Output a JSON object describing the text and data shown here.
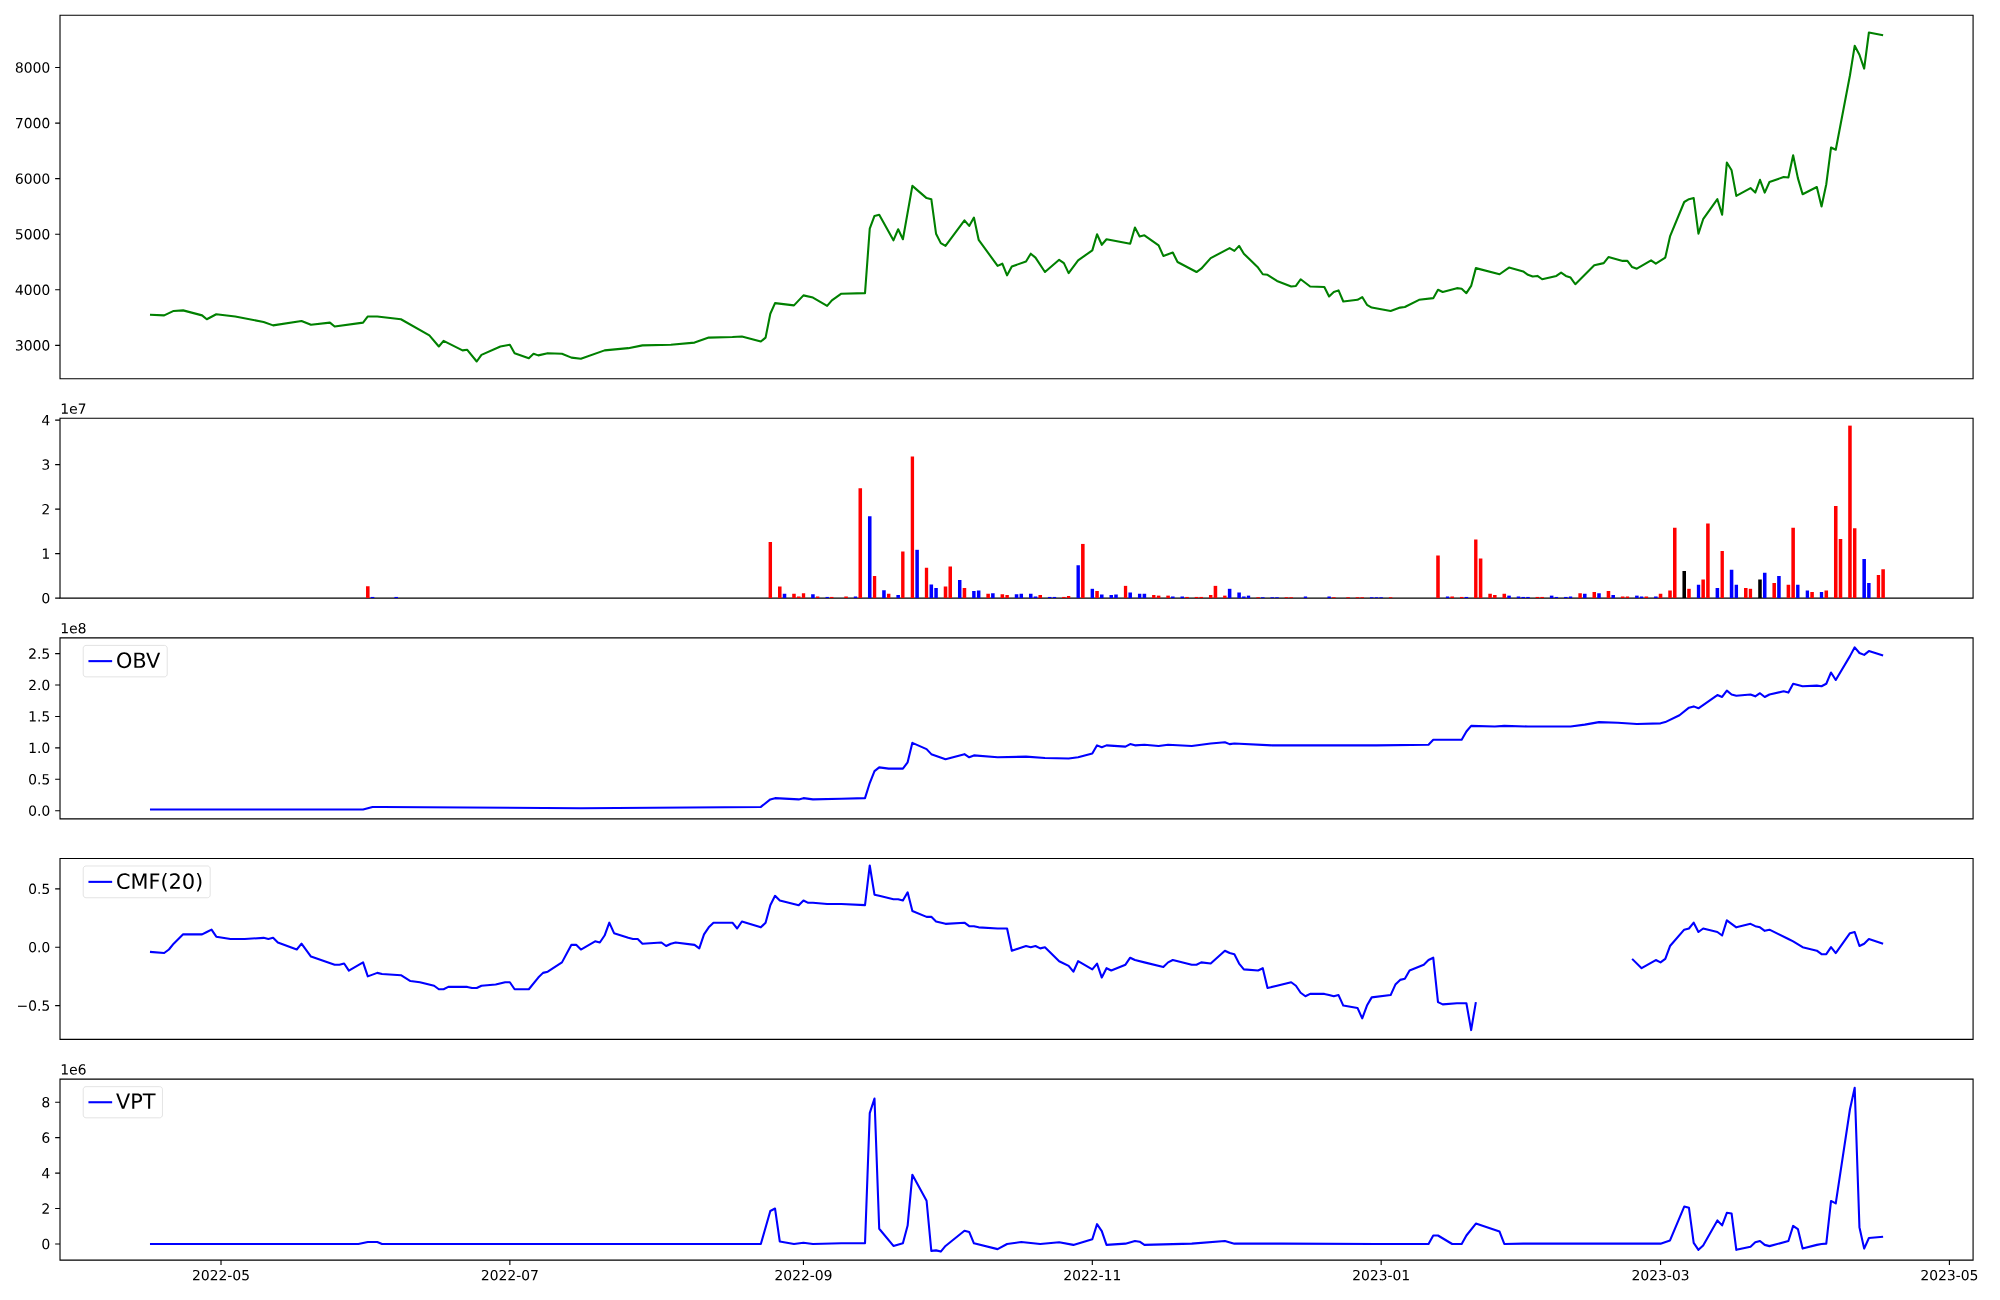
{
  "chart_data": [
    {
      "type": "line",
      "color": "#008000",
      "xlim": [
        "2022-03-28",
        "2023-05-06"
      ],
      "ylim": [
        2400,
        8940
      ],
      "yticks": [
        3000,
        4000,
        5000,
        6000,
        7000,
        8000
      ],
      "tick_labels": "y",
      "x": [
        "2022-04-16",
        "2022-04-19",
        "2022-04-21",
        "2022-04-23",
        "2022-04-27",
        "2022-04-28",
        "2022-04-30",
        "2022-05-04",
        "2022-05-10",
        "2022-05-12",
        "2022-05-18",
        "2022-05-20",
        "2022-05-24",
        "2022-05-25",
        "2022-05-31",
        "2022-06-01",
        "2022-06-03",
        "2022-06-08",
        "2022-06-14",
        "2022-06-16",
        "2022-06-17",
        "2022-06-21",
        "2022-06-22",
        "2022-06-24",
        "2022-06-25",
        "2022-06-29",
        "2022-07-01",
        "2022-07-02",
        "2022-07-05",
        "2022-07-06",
        "2022-07-07",
        "2022-07-09",
        "2022-07-12",
        "2022-07-14",
        "2022-07-16",
        "2022-07-21",
        "2022-07-26",
        "2022-07-29",
        "2022-08-04",
        "2022-08-09",
        "2022-08-12",
        "2022-08-17",
        "2022-08-19",
        "2022-08-23",
        "2022-08-24",
        "2022-08-25",
        "2022-08-26",
        "2022-08-30",
        "2022-09-01",
        "2022-09-03",
        "2022-09-06",
        "2022-09-07",
        "2022-09-09",
        "2022-09-14",
        "2022-09-15",
        "2022-09-16",
        "2022-09-17",
        "2022-09-20",
        "2022-09-21",
        "2022-09-22",
        "2022-09-24",
        "2022-09-27",
        "2022-09-28",
        "2022-09-29",
        "2022-09-30",
        "2022-10-01",
        "2022-10-05",
        "2022-10-06",
        "2022-10-07",
        "2022-10-08",
        "2022-10-12",
        "2022-10-13",
        "2022-10-14",
        "2022-10-15",
        "2022-10-18",
        "2022-10-19",
        "2022-10-20",
        "2022-10-22",
        "2022-10-25",
        "2022-10-26",
        "2022-10-27",
        "2022-10-29",
        "2022-11-01",
        "2022-11-02",
        "2022-11-03",
        "2022-11-04",
        "2022-11-09",
        "2022-11-10",
        "2022-11-11",
        "2022-11-12",
        "2022-11-15",
        "2022-11-16",
        "2022-11-18",
        "2022-11-19",
        "2022-11-23",
        "2022-11-24",
        "2022-11-26",
        "2022-11-30",
        "2022-12-01",
        "2022-12-02",
        "2022-12-03",
        "2022-12-06",
        "2022-12-07",
        "2022-12-08",
        "2022-12-10",
        "2022-12-13",
        "2022-12-14",
        "2022-12-15",
        "2022-12-17",
        "2022-12-20",
        "2022-12-21",
        "2022-12-22",
        "2022-12-23",
        "2022-12-24",
        "2022-12-27",
        "2022-12-28",
        "2022-12-29",
        "2022-12-30",
        "2023-01-03",
        "2023-01-05",
        "2023-01-06",
        "2023-01-09",
        "2023-01-12",
        "2023-01-13",
        "2023-01-14",
        "2023-01-17",
        "2023-01-18",
        "2023-01-19",
        "2023-01-20",
        "2023-01-21",
        "2023-01-26",
        "2023-01-28",
        "2023-01-31",
        "2023-02-01",
        "2023-02-02",
        "2023-02-03",
        "2023-02-04",
        "2023-02-07",
        "2023-02-08",
        "2023-02-09",
        "2023-02-10",
        "2023-02-11",
        "2023-02-15",
        "2023-02-17",
        "2023-02-18",
        "2023-02-21",
        "2023-02-22",
        "2023-02-23",
        "2023-02-24",
        "2023-02-27",
        "2023-02-28",
        "2023-03-02",
        "2023-03-03",
        "2023-03-06",
        "2023-03-07",
        "2023-03-08",
        "2023-03-09",
        "2023-03-10",
        "2023-03-13",
        "2023-03-14",
        "2023-03-15",
        "2023-03-16",
        "2023-03-17",
        "2023-03-20",
        "2023-03-21",
        "2023-03-22",
        "2023-03-23",
        "2023-03-24",
        "2023-03-27",
        "2023-03-28",
        "2023-03-29",
        "2023-03-30",
        "2023-03-31",
        "2023-04-03",
        "2023-04-04",
        "2023-04-05",
        "2023-04-06",
        "2023-04-07",
        "2023-04-10",
        "2023-04-11",
        "2023-04-12",
        "2023-04-13",
        "2023-04-14",
        "2023-04-17"
      ],
      "values": [
        3550,
        3540,
        3620,
        3630,
        3540,
        3470,
        3560,
        3520,
        3420,
        3360,
        3440,
        3370,
        3410,
        3340,
        3410,
        3520,
        3520,
        3470,
        3180,
        2980,
        3080,
        2910,
        2920,
        2710,
        2830,
        2980,
        3010,
        2860,
        2770,
        2850,
        2820,
        2860,
        2850,
        2780,
        2760,
        2910,
        2950,
        3000,
        3010,
        3050,
        3140,
        3150,
        3160,
        3070,
        3140,
        3570,
        3760,
        3720,
        3900,
        3860,
        3710,
        3810,
        3930,
        3940,
        5100,
        5330,
        5350,
        4890,
        5090,
        4910,
        5870,
        5650,
        5630,
        5010,
        4840,
        4790,
        5250,
        5150,
        5300,
        4900,
        4430,
        4470,
        4260,
        4420,
        4510,
        4650,
        4580,
        4320,
        4540,
        4480,
        4300,
        4530,
        4710,
        5000,
        4810,
        4910,
        4830,
        5120,
        4960,
        4980,
        4800,
        4610,
        4670,
        4500,
        4320,
        4380,
        4570,
        4750,
        4700,
        4790,
        4650,
        4400,
        4280,
        4270,
        4160,
        4060,
        4070,
        4190,
        4060,
        4050,
        3880,
        3960,
        3990,
        3790,
        3820,
        3870,
        3730,
        3680,
        3620,
        3680,
        3690,
        3820,
        3850,
        4000,
        3960,
        4030,
        4020,
        3940,
        4070,
        4390,
        4280,
        4400,
        4330,
        4270,
        4240,
        4250,
        4190,
        4250,
        4310,
        4250,
        4220,
        4100,
        4440,
        4480,
        4590,
        4520,
        4520,
        4410,
        4380,
        4530,
        4470,
        4580,
        4960,
        5580,
        5630,
        5650,
        5010,
        5270,
        5630,
        5350,
        6290,
        6150,
        5690,
        5830,
        5750,
        5980,
        5750,
        5940,
        6030,
        6020,
        6420,
        6010,
        5720,
        5850,
        5500,
        5900,
        6560,
        6520,
        7860,
        8390,
        8230,
        7980,
        8630,
        8580
      ]
    },
    {
      "type": "bar",
      "xlim": [
        "2022-03-28",
        "2023-05-06"
      ],
      "ylim": [
        0,
        4.04
      ],
      "tick_labels": "y",
      "annotations": [
        "1e7"
      ],
      "yticks": [
        0,
        1,
        2,
        3,
        4
      ],
      "x": [
        "2022-06-01",
        "2022-06-02",
        "2022-06-07",
        "2022-08-25",
        "2022-08-27",
        "2022-08-28",
        "2022-08-30",
        "2022-08-31",
        "2022-09-01",
        "2022-09-03",
        "2022-09-04",
        "2022-09-06",
        "2022-09-07",
        "2022-09-10",
        "2022-09-12",
        "2022-09-13",
        "2022-09-15",
        "2022-09-16",
        "2022-09-18",
        "2022-09-19",
        "2022-09-21",
        "2022-09-22",
        "2022-09-24",
        "2022-09-25",
        "2022-09-27",
        "2022-09-28",
        "2022-09-29",
        "2022-10-01",
        "2022-10-02",
        "2022-10-04",
        "2022-10-05",
        "2022-10-07",
        "2022-10-08",
        "2022-10-10",
        "2022-10-11",
        "2022-10-13",
        "2022-10-14",
        "2022-10-16",
        "2022-10-17",
        "2022-10-19",
        "2022-10-20",
        "2022-10-21",
        "2022-10-23",
        "2022-10-24",
        "2022-10-26",
        "2022-10-27",
        "2022-10-29",
        "2022-10-30",
        "2022-11-01",
        "2022-11-02",
        "2022-11-03",
        "2022-11-05",
        "2022-11-06",
        "2022-11-08",
        "2022-11-09",
        "2022-11-11",
        "2022-11-12",
        "2022-11-14",
        "2022-11-15",
        "2022-11-17",
        "2022-11-18",
        "2022-11-20",
        "2022-11-21",
        "2022-11-23",
        "2022-11-24",
        "2022-11-26",
        "2022-11-27",
        "2022-11-29",
        "2022-11-30",
        "2022-12-02",
        "2022-12-03",
        "2022-12-04",
        "2022-12-06",
        "2022-12-07",
        "2022-12-09",
        "2022-12-10",
        "2022-12-12",
        "2022-12-13",
        "2022-12-16",
        "2022-12-21",
        "2022-12-22",
        "2022-12-25",
        "2022-12-27",
        "2022-12-28",
        "2022-12-30",
        "2022-12-31",
        "2023-01-01",
        "2023-01-03",
        "2023-01-13",
        "2023-01-15",
        "2023-01-16",
        "2023-01-18",
        "2023-01-19",
        "2023-01-21",
        "2023-01-22",
        "2023-01-24",
        "2023-01-25",
        "2023-01-27",
        "2023-01-28",
        "2023-01-30",
        "2023-01-31",
        "2023-02-01",
        "2023-02-03",
        "2023-02-04",
        "2023-02-06",
        "2023-02-07",
        "2023-02-09",
        "2023-02-10",
        "2023-02-12",
        "2023-02-13",
        "2023-02-15",
        "2023-02-16",
        "2023-02-18",
        "2023-02-19",
        "2023-02-21",
        "2023-02-22",
        "2023-02-24",
        "2023-02-25",
        "2023-02-26",
        "2023-02-28",
        "2023-03-01",
        "2023-03-03",
        "2023-03-04",
        "2023-03-06",
        "2023-03-07",
        "2023-03-09",
        "2023-03-10",
        "2023-03-11",
        "2023-03-13",
        "2023-03-14",
        "2023-03-16",
        "2023-03-17",
        "2023-03-19",
        "2023-03-20",
        "2023-03-22",
        "2023-03-23",
        "2023-03-25",
        "2023-03-26",
        "2023-03-28",
        "2023-03-29",
        "2023-03-30",
        "2023-04-01",
        "2023-04-02",
        "2023-04-04",
        "2023-04-05",
        "2023-04-07",
        "2023-04-08",
        "2023-04-10",
        "2023-04-11",
        "2023-04-13",
        "2023-04-14",
        "2023-04-16",
        "2023-04-17"
      ],
      "values": [
        0.27,
        0.03,
        0.03,
        1.26,
        0.26,
        0.1,
        0.1,
        0.04,
        0.11,
        0.09,
        0.04,
        0.03,
        0.03,
        0.04,
        0.04,
        2.47,
        1.84,
        0.5,
        0.18,
        0.1,
        0.07,
        1.05,
        3.18,
        1.09,
        0.69,
        0.31,
        0.23,
        0.26,
        0.71,
        0.41,
        0.23,
        0.16,
        0.17,
        0.1,
        0.11,
        0.09,
        0.07,
        0.09,
        0.1,
        0.1,
        0.04,
        0.07,
        0.03,
        0.03,
        0.03,
        0.05,
        0.74,
        1.22,
        0.21,
        0.16,
        0.08,
        0.07,
        0.08,
        0.28,
        0.13,
        0.1,
        0.1,
        0.07,
        0.06,
        0.06,
        0.04,
        0.04,
        0.03,
        0.03,
        0.03,
        0.07,
        0.28,
        0.06,
        0.21,
        0.13,
        0.04,
        0.06,
        0.02,
        0.02,
        0.02,
        0.02,
        0.02,
        0.02,
        0.04,
        0.04,
        0.02,
        0.02,
        0.02,
        0.02,
        0.02,
        0.02,
        0.02,
        0.02,
        0.96,
        0.04,
        0.04,
        0.03,
        0.03,
        1.32,
        0.89,
        0.1,
        0.07,
        0.1,
        0.06,
        0.04,
        0.03,
        0.03,
        0.03,
        0.03,
        0.06,
        0.03,
        0.03,
        0.04,
        0.11,
        0.1,
        0.14,
        0.11,
        0.16,
        0.07,
        0.04,
        0.04,
        0.06,
        0.04,
        0.04,
        0.04,
        0.1,
        0.17,
        1.58,
        0.61,
        0.21,
        0.3,
        0.42,
        1.68,
        0.23,
        1.06,
        0.64,
        0.3,
        0.23,
        0.21,
        0.42,
        0.57,
        0.34,
        0.5,
        0.3,
        1.58,
        0.3,
        0.17,
        0.14,
        0.14,
        0.17,
        2.07,
        1.33,
        3.88,
        1.57,
        0.88,
        0.34,
        0.52,
        0.65
      ],
      "colors": [
        "#ff0000",
        "#0000ff",
        "#0000ff",
        "#ff0000",
        "#ff0000",
        "#0000ff",
        "#ff0000",
        "#ff0000",
        "#ff0000",
        "#0000ff",
        "#ff0000",
        "#0000ff",
        "#ff0000",
        "#ff0000",
        "#0000ff",
        "#ff0000",
        "#0000ff",
        "#ff0000",
        "#0000ff",
        "#ff0000",
        "#0000ff",
        "#ff0000",
        "#ff0000",
        "#0000ff",
        "#ff0000",
        "#0000ff",
        "#0000ff",
        "#ff0000",
        "#ff0000",
        "#0000ff",
        "#ff0000",
        "#0000ff",
        "#0000ff",
        "#ff0000",
        "#0000ff",
        "#ff0000",
        "#ff0000",
        "#0000ff",
        "#0000ff",
        "#0000ff",
        "#0000ff",
        "#ff0000",
        "#0000ff",
        "#0000ff",
        "#ff0000",
        "#ff0000",
        "#0000ff",
        "#ff0000",
        "#0000ff",
        "#ff0000",
        "#0000ff",
        "#0000ff",
        "#0000ff",
        "#ff0000",
        "#0000ff",
        "#0000ff",
        "#0000ff",
        "#ff0000",
        "#ff0000",
        "#ff0000",
        "#0000ff",
        "#0000ff",
        "#ff0000",
        "#ff0000",
        "#ff0000",
        "#ff0000",
        "#ff0000",
        "#ff0000",
        "#0000ff",
        "#0000ff",
        "#0000ff",
        "#0000ff",
        "#ff0000",
        "#0000ff",
        "#0000ff",
        "#0000ff",
        "#ff0000",
        "#ff0000",
        "#0000ff",
        "#0000ff",
        "#ff0000",
        "#ff0000",
        "#ff0000",
        "#ff0000",
        "#0000ff",
        "#0000ff",
        "#0000ff",
        "#ff0000",
        "#ff0000",
        "#0000ff",
        "#ff0000",
        "#ff0000",
        "#0000ff",
        "#ff0000",
        "#ff0000",
        "#ff0000",
        "#ff0000",
        "#ff0000",
        "#0000ff",
        "#0000ff",
        "#0000ff",
        "#0000ff",
        "#ff0000",
        "#ff0000",
        "#0000ff",
        "#0000ff",
        "#0000ff",
        "#0000ff",
        "#ff0000",
        "#0000ff",
        "#ff0000",
        "#0000ff",
        "#ff0000",
        "#0000ff",
        "#ff0000",
        "#ff0000",
        "#0000ff",
        "#0000ff",
        "#ff0000",
        "#0000ff",
        "#ff0000",
        "#ff0000",
        "#ff0000",
        "#000000",
        "#ff0000",
        "#0000ff",
        "#ff0000",
        "#ff0000",
        "#0000ff",
        "#ff0000",
        "#0000ff",
        "#0000ff",
        "#ff0000",
        "#ff0000",
        "#000000",
        "#0000ff",
        "#ff0000",
        "#0000ff",
        "#ff0000",
        "#ff0000",
        "#0000ff",
        "#0000ff",
        "#ff0000",
        "#0000ff",
        "#ff0000",
        "#ff0000",
        "#ff0000",
        "#ff0000",
        "#ff0000",
        "#0000ff",
        "#0000ff",
        "#ff0000",
        "#ff0000"
      ]
    },
    {
      "type": "line",
      "xlim": [
        "2022-03-28",
        "2023-05-06"
      ],
      "ylim": [
        -0.13,
        2.75
      ],
      "tick_labels": "y",
      "legend": "top left",
      "annotations": [
        "1e8"
      ],
      "yticks": [
        {
          "value": 0,
          "label": "0.0"
        },
        0.5,
        {
          "value": 1,
          "label": "1.0"
        },
        1.5,
        {
          "value": 2,
          "label": "2.0"
        },
        2.5
      ],
      "x": [
        "2022-04-16",
        "2022-05-31",
        "2022-06-02",
        "2022-06-04",
        "2022-07-16",
        "2022-08-23",
        "2022-08-25",
        "2022-08-26",
        "2022-08-31",
        "2022-09-01",
        "2022-09-03",
        "2022-09-09",
        "2022-09-14",
        "2022-09-15",
        "2022-09-16",
        "2022-09-17",
        "2022-09-19",
        "2022-09-22",
        "2022-09-23",
        "2022-09-24",
        "2022-09-27",
        "2022-09-28",
        "2022-10-01",
        "2022-10-05",
        "2022-10-06",
        "2022-10-07",
        "2022-10-12",
        "2022-10-18",
        "2022-10-22",
        "2022-10-27",
        "2022-10-29",
        "2022-11-01",
        "2022-11-02",
        "2022-11-03",
        "2022-11-04",
        "2022-11-08",
        "2022-11-09",
        "2022-11-10",
        "2022-11-12",
        "2022-11-15",
        "2022-11-17",
        "2022-11-22",
        "2022-11-26",
        "2022-11-29",
        "2022-11-30",
        "2022-12-01",
        "2022-12-09",
        "2022-12-20",
        "2022-12-31",
        "2023-01-11",
        "2023-01-12",
        "2023-01-16",
        "2023-01-18",
        "2023-01-19",
        "2023-01-20",
        "2023-01-25",
        "2023-01-27",
        "2023-02-01",
        "2023-02-06",
        "2023-02-10",
        "2023-02-13",
        "2023-02-16",
        "2023-02-20",
        "2023-02-24",
        "2023-03-01",
        "2023-03-02",
        "2023-03-05",
        "2023-03-07",
        "2023-03-08",
        "2023-03-09",
        "2023-03-13",
        "2023-03-14",
        "2023-03-15",
        "2023-03-16",
        "2023-03-17",
        "2023-03-20",
        "2023-03-21",
        "2023-03-22",
        "2023-03-23",
        "2023-03-24",
        "2023-03-27",
        "2023-03-28",
        "2023-03-29",
        "2023-03-31",
        "2023-04-03",
        "2023-04-04",
        "2023-04-05",
        "2023-04-06",
        "2023-04-07",
        "2023-04-10",
        "2023-04-11",
        "2023-04-12",
        "2023-04-13",
        "2023-04-14",
        "2023-04-17"
      ],
      "series": [
        {
          "name": "OBV",
          "color": "#0000ff",
          "values": [
            0.02,
            0.02,
            0.06,
            0.06,
            0.04,
            0.06,
            0.18,
            0.2,
            0.18,
            0.2,
            0.18,
            0.19,
            0.2,
            0.44,
            0.63,
            0.69,
            0.67,
            0.67,
            0.77,
            1.08,
            0.98,
            0.9,
            0.82,
            0.9,
            0.85,
            0.88,
            0.85,
            0.86,
            0.84,
            0.83,
            0.85,
            0.91,
            1.04,
            1.01,
            1.04,
            1.02,
            1.06,
            1.04,
            1.05,
            1.03,
            1.05,
            1.03,
            1.07,
            1.09,
            1.06,
            1.07,
            1.04,
            1.04,
            1.04,
            1.05,
            1.13,
            1.13,
            1.13,
            1.26,
            1.35,
            1.34,
            1.35,
            1.34,
            1.34,
            1.34,
            1.37,
            1.41,
            1.4,
            1.38,
            1.39,
            1.41,
            1.52,
            1.64,
            1.66,
            1.63,
            1.84,
            1.81,
            1.91,
            1.85,
            1.83,
            1.85,
            1.82,
            1.87,
            1.81,
            1.85,
            1.9,
            1.88,
            2.02,
            1.98,
            1.99,
            1.98,
            2.02,
            2.2,
            2.08,
            2.46,
            2.6,
            2.51,
            2.48,
            2.54,
            2.47
          ]
        }
      ]
    },
    {
      "type": "line",
      "xlim": [
        "2022-03-28",
        "2023-05-06"
      ],
      "ylim": [
        -0.79,
        0.76
      ],
      "tick_labels": "y",
      "legend": "top left",
      "yticks": [
        {
          "value": -0.5,
          "label": "−0.5"
        },
        {
          "value": 0,
          "label": "0.0"
        },
        0.5
      ],
      "x": [
        "2022-04-16",
        "2022-04-19",
        "2022-04-20",
        "2022-04-21",
        "2022-04-22",
        "2022-04-23",
        "2022-04-27",
        "2022-04-28",
        "2022-04-29",
        "2022-04-30",
        "2022-05-03",
        "2022-05-04",
        "2022-05-06",
        "2022-05-10",
        "2022-05-11",
        "2022-05-12",
        "2022-05-13",
        "2022-05-17",
        "2022-05-18",
        "2022-05-20",
        "2022-05-25",
        "2022-05-26",
        "2022-05-27",
        "2022-05-28",
        "2022-05-31",
        "2022-06-01",
        "2022-06-03",
        "2022-06-04",
        "2022-06-08",
        "2022-06-10",
        "2022-06-12",
        "2022-06-15",
        "2022-06-16",
        "2022-06-17",
        "2022-06-18",
        "2022-06-21",
        "2022-06-22",
        "2022-06-23",
        "2022-06-24",
        "2022-06-25",
        "2022-06-28",
        "2022-06-30",
        "2022-07-01",
        "2022-07-02",
        "2022-07-05",
        "2022-07-07",
        "2022-07-08",
        "2022-07-09",
        "2022-07-12",
        "2022-07-14",
        "2022-07-15",
        "2022-07-16",
        "2022-07-19",
        "2022-07-20",
        "2022-07-21",
        "2022-07-22",
        "2022-07-23",
        "2022-07-26",
        "2022-07-27",
        "2022-07-28",
        "2022-07-29",
        "2022-08-02",
        "2022-08-03",
        "2022-08-04",
        "2022-08-05",
        "2022-08-09",
        "2022-08-10",
        "2022-08-11",
        "2022-08-12",
        "2022-08-13",
        "2022-08-17",
        "2022-08-18",
        "2022-08-19",
        "2022-08-23",
        "2022-08-24",
        "2022-08-25",
        "2022-08-26",
        "2022-08-27",
        "2022-08-31",
        "2022-09-01",
        "2022-09-02",
        "2022-09-03",
        "2022-09-06",
        "2022-09-09",
        "2022-09-14",
        "2022-09-15",
        "2022-09-16",
        "2022-09-17",
        "2022-09-20",
        "2022-09-21",
        "2022-09-22",
        "2022-09-23",
        "2022-09-24",
        "2022-09-27",
        "2022-09-28",
        "2022-09-29",
        "2022-10-01",
        "2022-10-05",
        "2022-10-06",
        "2022-10-07",
        "2022-10-08",
        "2022-10-12",
        "2022-10-14",
        "2022-10-15",
        "2022-10-18",
        "2022-10-19",
        "2022-10-20",
        "2022-10-21",
        "2022-10-22",
        "2022-10-25",
        "2022-10-27",
        "2022-10-28",
        "2022-10-29",
        "2022-11-01",
        "2022-11-02",
        "2022-11-03",
        "2022-11-04",
        "2022-11-05",
        "2022-11-08",
        "2022-11-09",
        "2022-11-10",
        "2022-11-12",
        "2022-11-16",
        "2022-11-17",
        "2022-11-18",
        "2022-11-22",
        "2022-11-23",
        "2022-11-24",
        "2022-11-26",
        "2022-11-29",
        "2022-11-30",
        "2022-12-01",
        "2022-12-02",
        "2022-12-03",
        "2022-12-06",
        "2022-12-07",
        "2022-12-08",
        "2022-12-10",
        "2022-12-13",
        "2022-12-14",
        "2022-12-15",
        "2022-12-16",
        "2022-12-17",
        "2022-12-20",
        "2022-12-21",
        "2022-12-22",
        "2022-12-23",
        "2022-12-24",
        "2022-12-27",
        "2022-12-28",
        "2022-12-29",
        "2022-12-30",
        "2023-01-03",
        "2023-01-04",
        "2023-01-05",
        "2023-01-06",
        "2023-01-07",
        "2023-01-10",
        "2023-01-11",
        "2023-01-12",
        "2023-01-13",
        "2023-01-14",
        "2023-01-17",
        "2023-01-18",
        "2023-01-19",
        "2023-01-20",
        "2023-01-21",
        "2023-02-05",
        "2023-02-23",
        "2023-02-25",
        "2023-02-28",
        "2023-03-01",
        "2023-03-02",
        "2023-03-03",
        "2023-03-06",
        "2023-03-07",
        "2023-03-08",
        "2023-03-09",
        "2023-03-10",
        "2023-03-13",
        "2023-03-14",
        "2023-03-15",
        "2023-03-16",
        "2023-03-17",
        "2023-03-20",
        "2023-03-21",
        "2023-03-22",
        "2023-03-23",
        "2023-03-24",
        "2023-03-28",
        "2023-03-29",
        "2023-03-31",
        "2023-04-03",
        "2023-04-04",
        "2023-04-05",
        "2023-04-06",
        "2023-04-07",
        "2023-04-10",
        "2023-04-11",
        "2023-04-12",
        "2023-04-13",
        "2023-04-14",
        "2023-04-17"
      ],
      "series": [
        {
          "name": "CMF(20)",
          "color": "#0000ff",
          "values": [
            -0.04,
            -0.05,
            -0.02,
            0.03,
            0.07,
            0.11,
            0.11,
            0.13,
            0.15,
            0.09,
            0.07,
            0.07,
            0.07,
            0.08,
            0.07,
            0.08,
            0.04,
            -0.02,
            0.03,
            -0.08,
            -0.15,
            -0.15,
            -0.14,
            -0.2,
            -0.13,
            -0.25,
            -0.22,
            -0.23,
            -0.24,
            -0.29,
            -0.3,
            -0.33,
            -0.36,
            -0.36,
            -0.34,
            -0.34,
            -0.34,
            -0.35,
            -0.35,
            -0.33,
            -0.32,
            -0.3,
            -0.3,
            -0.36,
            -0.36,
            -0.26,
            -0.22,
            -0.21,
            -0.13,
            0.02,
            0.02,
            -0.02,
            0.05,
            0.04,
            0.1,
            0.21,
            0.12,
            0.08,
            0.07,
            0.07,
            0.03,
            0.04,
            0.01,
            0.03,
            0.04,
            0.02,
            -0.01,
            0.11,
            0.17,
            0.21,
            0.21,
            0.16,
            0.22,
            0.17,
            0.21,
            0.36,
            0.44,
            0.4,
            0.36,
            0.4,
            0.38,
            0.38,
            0.37,
            0.37,
            0.36,
            0.7,
            0.45,
            0.44,
            0.41,
            0.41,
            0.4,
            0.47,
            0.31,
            0.26,
            0.26,
            0.22,
            0.2,
            0.21,
            0.18,
            0.18,
            0.17,
            0.16,
            0.16,
            -0.03,
            0.01,
            0.0,
            0.01,
            -0.01,
            0.0,
            -0.12,
            -0.16,
            -0.21,
            -0.12,
            -0.19,
            -0.14,
            -0.26,
            -0.18,
            -0.2,
            -0.15,
            -0.09,
            -0.11,
            -0.13,
            -0.17,
            -0.13,
            -0.11,
            -0.15,
            -0.15,
            -0.13,
            -0.14,
            -0.03,
            -0.05,
            -0.06,
            -0.14,
            -0.19,
            -0.2,
            -0.18,
            -0.35,
            -0.33,
            -0.3,
            -0.33,
            -0.39,
            -0.42,
            -0.4,
            -0.4,
            -0.41,
            -0.42,
            -0.41,
            -0.5,
            -0.52,
            -0.61,
            -0.5,
            -0.43,
            -0.41,
            -0.32,
            -0.28,
            -0.27,
            -0.2,
            -0.15,
            -0.11,
            -0.09,
            -0.47,
            -0.49,
            -0.48,
            -0.48,
            -0.48,
            -0.71,
            -0.47,
            null,
            -0.1,
            -0.18,
            -0.11,
            -0.13,
            -0.1,
            0.01,
            0.15,
            0.16,
            0.21,
            0.13,
            0.16,
            0.13,
            0.1,
            0.23,
            0.2,
            0.17,
            0.2,
            0.18,
            0.17,
            0.14,
            0.15,
            0.07,
            0.05,
            0.0,
            -0.03,
            -0.06,
            -0.06,
            0.0,
            -0.05,
            0.12,
            0.13,
            0.01,
            0.03,
            0.07,
            0.03
          ]
        }
      ]
    },
    {
      "type": "line",
      "xlim": [
        "2022-03-28",
        "2023-05-06"
      ],
      "ylim": [
        -0.91,
        9.3
      ],
      "legend": "top left",
      "annotations": [
        "1e6"
      ],
      "xticks": [
        {
          "value": "2022-05-01",
          "label": "2022-05"
        },
        {
          "value": "2022-07-01",
          "label": "2022-07"
        },
        {
          "value": "2022-09-01",
          "label": "2022-09"
        },
        {
          "value": "2022-11-01",
          "label": "2022-11"
        },
        {
          "value": "2023-01-01",
          "label": "2023-01"
        },
        {
          "value": "2023-03-01",
          "label": "2023-03"
        },
        {
          "value": "2023-05-01",
          "label": "2023-05"
        }
      ],
      "yticks": [
        0,
        2,
        4,
        6,
        8
      ],
      "x": [
        "2022-04-16",
        "2022-05-30",
        "2022-06-01",
        "2022-06-03",
        "2022-06-04",
        "2022-08-23",
        "2022-08-25",
        "2022-08-26",
        "2022-08-27",
        "2022-08-30",
        "2022-09-01",
        "2022-09-03",
        "2022-09-09",
        "2022-09-14",
        "2022-09-15",
        "2022-09-16",
        "2022-09-17",
        "2022-09-20",
        "2022-09-22",
        "2022-09-23",
        "2022-09-24",
        "2022-09-27",
        "2022-09-28",
        "2022-09-29",
        "2022-09-30",
        "2022-10-01",
        "2022-10-05",
        "2022-10-06",
        "2022-10-07",
        "2022-10-12",
        "2022-10-14",
        "2022-10-17",
        "2022-10-21",
        "2022-10-25",
        "2022-10-28",
        "2022-11-01",
        "2022-11-02",
        "2022-11-03",
        "2022-11-04",
        "2022-11-08",
        "2022-11-10",
        "2022-11-11",
        "2022-11-12",
        "2022-11-22",
        "2022-11-29",
        "2022-12-01",
        "2022-12-11",
        "2022-12-31",
        "2023-01-11",
        "2023-01-12",
        "2023-01-13",
        "2023-01-16",
        "2023-01-18",
        "2023-01-19",
        "2023-01-21",
        "2023-01-26",
        "2023-01-27",
        "2023-01-31",
        "2023-03-01",
        "2023-03-03",
        "2023-03-06",
        "2023-03-07",
        "2023-03-08",
        "2023-03-09",
        "2023-03-10",
        "2023-03-13",
        "2023-03-14",
        "2023-03-15",
        "2023-03-16",
        "2023-03-17",
        "2023-03-20",
        "2023-03-21",
        "2023-03-22",
        "2023-03-23",
        "2023-03-24",
        "2023-03-28",
        "2023-03-29",
        "2023-03-30",
        "2023-03-31",
        "2023-04-03",
        "2023-04-04",
        "2023-04-05",
        "2023-04-06",
        "2023-04-07",
        "2023-04-10",
        "2023-04-11",
        "2023-04-12",
        "2023-04-13",
        "2023-04-14",
        "2023-04-17"
      ],
      "series": [
        {
          "name": "VPT",
          "color": "#0000ff",
          "values": [
            0,
            0,
            0.11,
            0.11,
            0,
            0,
            1.86,
            2,
            0.14,
            0,
            0.07,
            0,
            0.04,
            0.04,
            7.38,
            8.21,
            0.86,
            -0.11,
            0.04,
            1.04,
            3.91,
            2.44,
            -0.39,
            -0.36,
            -0.43,
            -0.11,
            0.75,
            0.68,
            0.04,
            -0.29,
            0,
            0.11,
            0,
            0.1,
            -0.05,
            0.27,
            1.12,
            0.73,
            -0.05,
            0.02,
            0.17,
            0.13,
            -0.05,
            0.02,
            0.17,
            0.02,
            0.02,
            0,
            0,
            0.48,
            0.48,
            0,
            0,
            0.48,
            1.15,
            0.7,
            0,
            0.02,
            0.02,
            0.2,
            2.11,
            2.04,
            0.06,
            -0.33,
            -0.08,
            1.33,
            1.05,
            1.76,
            1.72,
            -0.33,
            -0.15,
            0.1,
            0.17,
            -0.05,
            -0.12,
            0.17,
            1.02,
            0.84,
            -0.26,
            -0.05,
            0,
            0.02,
            2.43,
            2.29,
            7.6,
            8.81,
            0.95,
            -0.26,
            0.34,
            0.41
          ]
        }
      ]
    }
  ]
}
